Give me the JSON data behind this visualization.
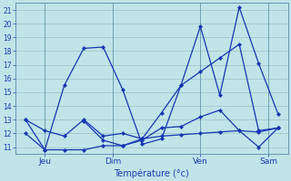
{
  "title": "Température (°c)",
  "background_color": "#c0e4e8",
  "grid_color": "#9bbfc8",
  "line_color": "#1535b0",
  "ylim": [
    10.5,
    21.5
  ],
  "yticks": [
    11,
    12,
    13,
    14,
    15,
    16,
    17,
    18,
    19,
    20,
    21
  ],
  "xlim": [
    -0.5,
    13.5
  ],
  "x_tick_positions": [
    1.0,
    4.5,
    9.0,
    12.5
  ],
  "x_tick_labels": [
    "Jeu",
    "Dim",
    "Ven",
    "Sam"
  ],
  "series": {
    "A_zigzag": {
      "x": [
        0,
        1,
        2,
        3,
        4,
        5,
        6,
        7,
        8,
        9,
        10,
        11,
        12,
        13
      ],
      "y": [
        13.0,
        10.8,
        15.5,
        18.2,
        18.3,
        15.2,
        11.2,
        11.6,
        15.5,
        19.8,
        14.8,
        21.2,
        17.1,
        13.4
      ]
    },
    "B_rising": {
      "x": [
        0,
        1,
        2,
        3,
        4,
        5,
        6,
        7,
        8,
        9,
        10,
        11,
        12,
        13
      ],
      "y": [
        13.0,
        12.2,
        11.8,
        13.0,
        11.8,
        12.0,
        11.6,
        13.5,
        15.5,
        16.5,
        17.5,
        18.5,
        12.2,
        12.4
      ]
    },
    "C_flat_low": {
      "x": [
        0,
        1,
        2,
        3,
        4,
        5,
        6,
        7,
        8,
        9,
        10,
        11,
        12,
        13
      ],
      "y": [
        12.0,
        10.8,
        10.8,
        10.8,
        11.1,
        11.1,
        11.6,
        11.8,
        11.9,
        12.0,
        12.1,
        12.2,
        11.0,
        12.4
      ]
    },
    "D_mid": {
      "x": [
        3,
        4,
        5,
        6,
        7,
        8,
        9,
        10,
        11,
        12,
        13
      ],
      "y": [
        12.9,
        11.5,
        11.1,
        11.5,
        12.4,
        12.5,
        13.2,
        13.7,
        12.2,
        12.1,
        12.4
      ]
    }
  }
}
